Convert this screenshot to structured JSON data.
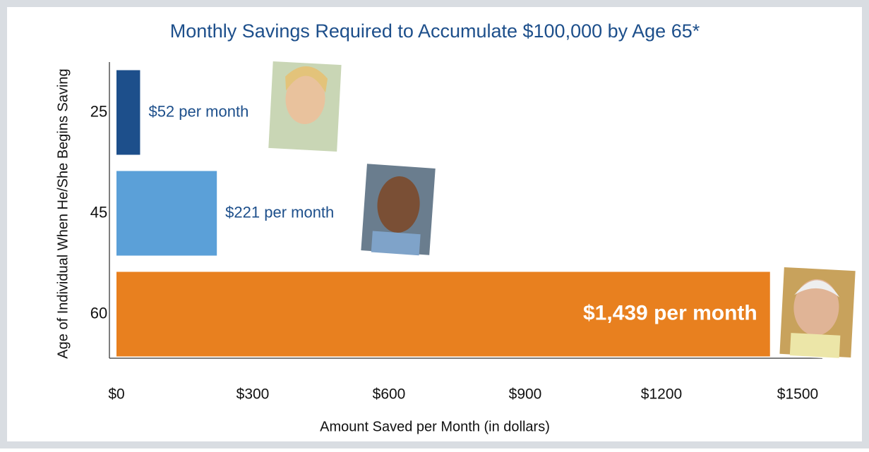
{
  "chart_data": {
    "type": "barh",
    "title": "Monthly Savings Required to Accumulate $100,000 by Age 65*",
    "xlabel": "Amount Saved per Month (in dollars)",
    "ylabel": "Age of Individual When He/She Begins Saving",
    "categories": [
      "25",
      "45",
      "60"
    ],
    "values": [
      52,
      221,
      1439
    ],
    "value_labels": [
      "$52 per month",
      "$221 per month",
      "$1,439 per month"
    ],
    "colors": [
      "#1d4f8b",
      "#5ba0d8",
      "#e8801f"
    ],
    "xlim": [
      0,
      1500
    ],
    "xticks": [
      {
        "value": 0,
        "label": "$0"
      },
      {
        "value": 300,
        "label": "$300"
      },
      {
        "value": 600,
        "label": "$600"
      },
      {
        "value": 900,
        "label": "$900"
      },
      {
        "value": 1200,
        "label": "$1200"
      },
      {
        "value": 1500,
        "label": "$1500"
      }
    ]
  }
}
